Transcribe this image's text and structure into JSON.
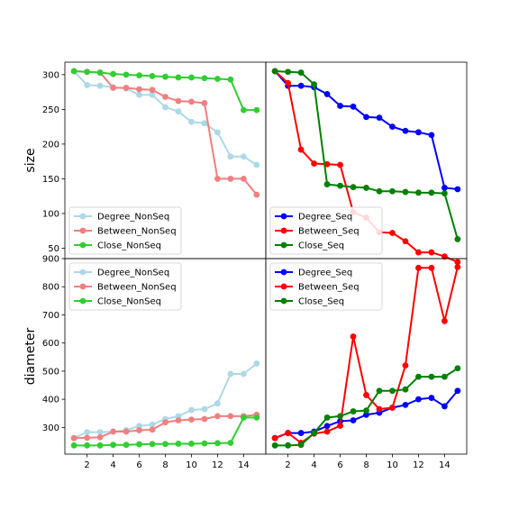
{
  "chart_data": [
    {
      "type": "line",
      "panel": "top-left",
      "ylabel": "size",
      "xlabel": "",
      "ylim": [
        35,
        318
      ],
      "xlim": [
        0.3,
        15.7
      ],
      "yticks": [
        50,
        100,
        150,
        200,
        250,
        300
      ],
      "xticks": [
        2,
        4,
        6,
        8,
        10,
        12,
        14
      ],
      "show_x_tick_labels": false,
      "show_y_tick_labels": true,
      "grid": false,
      "legend_position": "lower-left",
      "x": [
        1,
        2,
        3,
        4,
        5,
        6,
        7,
        8,
        9,
        10,
        11,
        12,
        13,
        14,
        15
      ],
      "series": [
        {
          "name": "Degree_NonSeq",
          "color": "#add8e6",
          "values": [
            305,
            285,
            284,
            282,
            280,
            271,
            271,
            253,
            247,
            232,
            230,
            217,
            182,
            182,
            170
          ]
        },
        {
          "name": "Between_NonSeq",
          "color": "#f08080",
          "values": [
            305,
            304,
            303,
            281,
            281,
            279,
            278,
            268,
            262,
            261,
            259,
            150,
            150,
            150,
            127
          ]
        },
        {
          "name": "Close_NonSeq",
          "color": "#32cd32",
          "values": [
            305,
            304,
            303,
            301,
            300,
            299,
            298,
            297,
            296,
            296,
            295,
            294,
            293,
            249,
            249
          ]
        }
      ]
    },
    {
      "type": "line",
      "panel": "top-right",
      "ylabel": "",
      "xlabel": "",
      "ylim": [
        35,
        318
      ],
      "xlim": [
        0.3,
        15.7
      ],
      "yticks": [
        50,
        100,
        150,
        200,
        250,
        300
      ],
      "xticks": [
        2,
        4,
        6,
        8,
        10,
        12,
        14
      ],
      "show_x_tick_labels": false,
      "show_y_tick_labels": false,
      "grid": false,
      "legend_position": "lower-left",
      "x": [
        1,
        2,
        3,
        4,
        5,
        6,
        7,
        8,
        9,
        10,
        11,
        12,
        13,
        14,
        15
      ],
      "series": [
        {
          "name": "Degree_Seq",
          "color": "#0000ff",
          "values": [
            305,
            284,
            284,
            282,
            272,
            255,
            254,
            239,
            238,
            225,
            219,
            217,
            213,
            137,
            135
          ]
        },
        {
          "name": "Between_Seq",
          "color": "#ff0000",
          "values": [
            305,
            288,
            192,
            172,
            171,
            170,
            102,
            94,
            73,
            72,
            60,
            44,
            44,
            38,
            30
          ]
        },
        {
          "name": "Close_Seq",
          "color": "#008000",
          "values": [
            305,
            304,
            303,
            286,
            142,
            140,
            138,
            137,
            132,
            132,
            131,
            130,
            130,
            129,
            63
          ]
        }
      ]
    },
    {
      "type": "line",
      "panel": "bottom-left",
      "ylabel": "diameter",
      "xlabel": "",
      "ylim": [
        205,
        900
      ],
      "xlim": [
        0.3,
        15.7
      ],
      "yticks": [
        300,
        400,
        500,
        600,
        700,
        800,
        900
      ],
      "xticks": [
        2,
        4,
        6,
        8,
        10,
        12,
        14
      ],
      "show_x_tick_labels": true,
      "show_y_tick_labels": true,
      "grid": false,
      "legend_position": "upper-left",
      "x": [
        1,
        2,
        3,
        4,
        5,
        6,
        7,
        8,
        9,
        10,
        11,
        12,
        13,
        14,
        15
      ],
      "series": [
        {
          "name": "Degree_NonSeq",
          "color": "#add8e6",
          "values": [
            262,
            283,
            283,
            285,
            290,
            305,
            310,
            330,
            340,
            362,
            365,
            385,
            490,
            490,
            527
          ]
        },
        {
          "name": "Between_NonSeq",
          "color": "#f08080",
          "values": [
            262,
            263,
            265,
            285,
            285,
            290,
            292,
            318,
            325,
            328,
            330,
            340,
            340,
            340,
            345
          ]
        },
        {
          "name": "Close_NonSeq",
          "color": "#32cd32",
          "values": [
            236,
            236,
            236,
            238,
            238,
            240,
            241,
            241,
            242,
            242,
            243,
            244,
            245,
            335,
            335
          ]
        }
      ]
    },
    {
      "type": "line",
      "panel": "bottom-right",
      "ylabel": "",
      "xlabel": "",
      "ylim": [
        205,
        900
      ],
      "xlim": [
        0.3,
        15.7
      ],
      "yticks": [
        300,
        400,
        500,
        600,
        700,
        800,
        900
      ],
      "xticks": [
        2,
        4,
        6,
        8,
        10,
        12,
        14
      ],
      "show_x_tick_labels": true,
      "show_y_tick_labels": false,
      "grid": false,
      "legend_position": "upper-left",
      "x": [
        1,
        2,
        3,
        4,
        5,
        6,
        7,
        8,
        9,
        10,
        11,
        12,
        13,
        14,
        15
      ],
      "series": [
        {
          "name": "Degree_Seq",
          "color": "#0000ff",
          "values": [
            262,
            280,
            280,
            285,
            305,
            322,
            325,
            345,
            352,
            370,
            380,
            400,
            405,
            375,
            430
          ]
        },
        {
          "name": "Between_Seq",
          "color": "#ff0000",
          "values": [
            262,
            280,
            245,
            278,
            285,
            306,
            623,
            415,
            365,
            370,
            520,
            867,
            867,
            678,
            870
          ]
        },
        {
          "name": "Close_Seq",
          "color": "#008000",
          "values": [
            236,
            236,
            238,
            280,
            335,
            340,
            357,
            360,
            430,
            430,
            435,
            480,
            480,
            480,
            510
          ]
        }
      ]
    }
  ]
}
